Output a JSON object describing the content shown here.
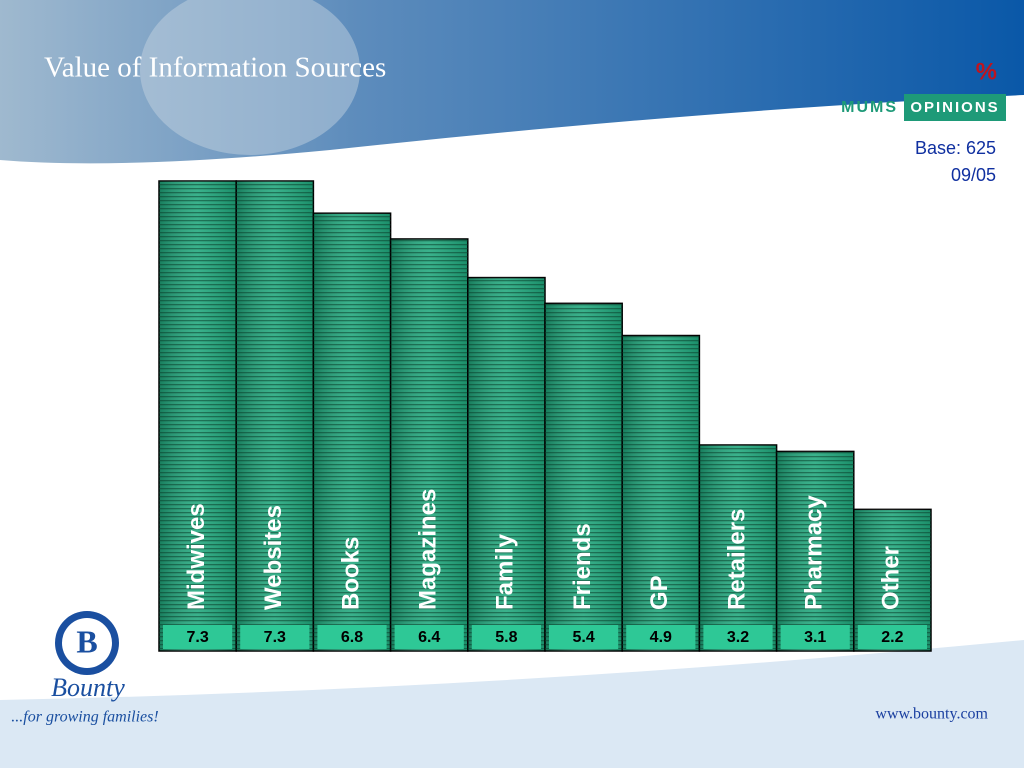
{
  "chart_data": {
    "type": "bar",
    "title": "Value of Information Sources",
    "unit": "%",
    "brand_left": "MUMS",
    "brand_right": "OPINIONS",
    "base": "Base: 625",
    "date": "09/05",
    "categories": [
      "Midwives",
      "Websites",
      "Books",
      "Magazines",
      "Family",
      "Friends",
      "GP",
      "Retailers",
      "Pharmacy",
      "Other"
    ],
    "values": [
      7.3,
      7.3,
      6.8,
      6.4,
      5.8,
      5.4,
      4.9,
      3.2,
      3.1,
      2.2
    ],
    "color": "#1fa77c",
    "logo_name": "Bounty",
    "logo_tagline": "...for growing families!",
    "url": "www.bounty.com"
  }
}
